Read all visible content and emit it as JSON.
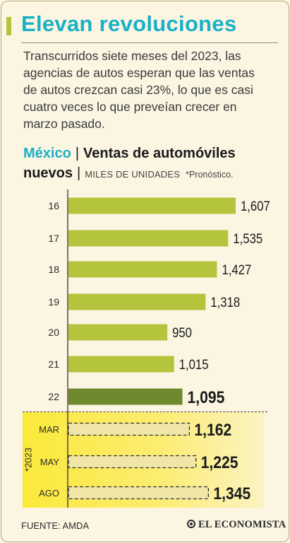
{
  "title": "Elevan revoluciones",
  "intro": "Transcurridos siete meses del 2023, las agencias de autos esperan que las ventas de autos crezcan casi 23%, lo que es casi cuatro veces lo que preveían crecer en marzo pasado.",
  "subtitle": {
    "country": "México",
    "topic_line1": "Ventas de automóviles",
    "topic_line2": "nuevos",
    "units": "MILES DE UNIDADES",
    "forecast_note": "*Pronóstico."
  },
  "forecast_group_label": "*2023",
  "source": "FUENTE: AMDA",
  "brand": "EL ECONOMISTA",
  "colors": {
    "title": "#1ab0c8",
    "bar_history": "#b4c43c",
    "bar_2022": "#6f8a2e",
    "forecast_bg": "#fbe93a"
  },
  "chart_data": {
    "type": "bar",
    "orientation": "horizontal",
    "title": "Ventas de automóviles nuevos",
    "unit": "MILES DE UNIDADES",
    "categories": [
      "16",
      "17",
      "18",
      "19",
      "20",
      "21",
      "22",
      "MAR",
      "MAY",
      "AGO"
    ],
    "values": [
      1607,
      1535,
      1427,
      1318,
      950,
      1015,
      1095,
      1162,
      1225,
      1345
    ],
    "value_labels": [
      "1,607",
      "1,535",
      "1,427",
      "1,318",
      "950",
      "1,015",
      "1,095",
      "1,162",
      "1,225",
      "1,345"
    ],
    "kind": [
      "history",
      "history",
      "history",
      "history",
      "history",
      "history",
      "highlight",
      "forecast",
      "forecast",
      "forecast"
    ],
    "xlim": [
      0,
      1607
    ],
    "grid": false,
    "legend": "none"
  }
}
